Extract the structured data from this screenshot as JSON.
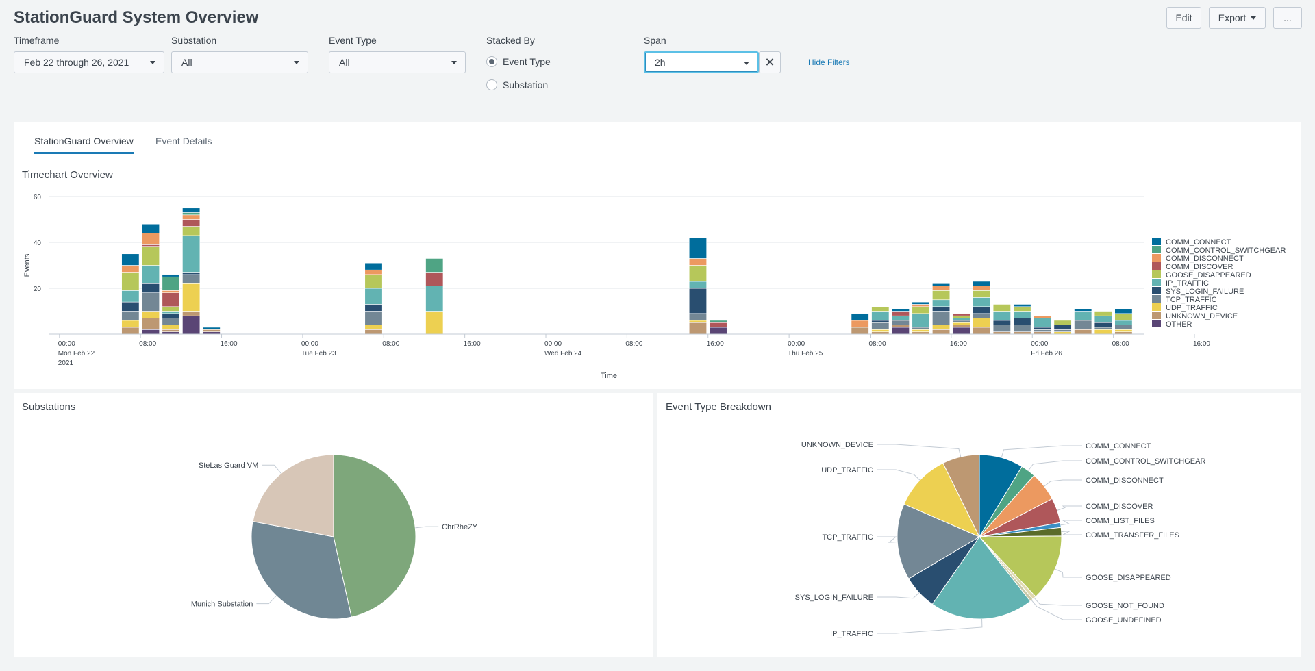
{
  "header": {
    "title": "StationGuard System Overview",
    "edit_label": "Edit",
    "export_label": "Export",
    "more_label": "..."
  },
  "filters": {
    "timeframe": {
      "label": "Timeframe",
      "value": "Feb 22 through 26, 2021"
    },
    "substation": {
      "label": "Substation",
      "value": "All"
    },
    "event_type": {
      "label": "Event Type",
      "value": "All"
    },
    "stacked_by": {
      "label": "Stacked By",
      "options": [
        "Event Type",
        "Substation"
      ],
      "selected": "Event Type"
    },
    "span": {
      "label": "Span",
      "value": "2h"
    },
    "hide_filters_label": "Hide Filters"
  },
  "tabs": [
    {
      "label": "StationGuard Overview",
      "active": true
    },
    {
      "label": "Event Details",
      "active": false
    }
  ],
  "panels": {
    "timechart_title": "Timechart Overview",
    "substations_title": "Substations",
    "breakdown_title": "Event Type Breakdown"
  },
  "colors": {
    "COMM_CONNECT": "#006d9c",
    "COMM_CONTROL_SWITCHGEAR": "#4fa484",
    "COMM_DISCONNECT": "#ec9960",
    "COMM_DISCOVER": "#af575a",
    "COMM_LIST_FILES": "#3a8fc4",
    "COMM_TRANSFER_FILES": "#5a6b2a",
    "GOOSE_DISAPPEARED": "#b6c75a",
    "GOOSE_NOT_FOUND": "#e0d9b0",
    "GOOSE_UNDEFINED": "#c9c9a8",
    "IP_TRAFFIC": "#62b3b2",
    "SYS_LOGIN_FAILURE": "#294e70",
    "TCP_TRAFFIC": "#738795",
    "UDP_TRAFFIC": "#edd051",
    "UNKNOWN_DEVICE": "#bd9872",
    "OTHER": "#5a4575",
    "ChrRheZY": "#7ea77b",
    "Munich Substation": "#708794",
    "SteLas Guard VM": "#d7c6b7"
  },
  "chart_data": [
    {
      "type": "bar",
      "stacked": true,
      "title": "Timechart Overview",
      "xlabel": "Time",
      "ylabel": "Events",
      "ylim": [
        0,
        60
      ],
      "yticks": [
        20,
        40,
        60
      ],
      "x_unit": "hours since Mon Feb 22 00:00",
      "xlim": [
        -1,
        107
      ],
      "bar_span_hours": 2,
      "xticks": [
        {
          "hour": 0,
          "lines": [
            "00:00",
            "Mon Feb 22",
            "2021"
          ]
        },
        {
          "hour": 8,
          "lines": [
            "08:00"
          ]
        },
        {
          "hour": 16,
          "lines": [
            "16:00"
          ]
        },
        {
          "hour": 24,
          "lines": [
            "00:00",
            "Tue Feb 23"
          ]
        },
        {
          "hour": 32,
          "lines": [
            "08:00"
          ]
        },
        {
          "hour": 40,
          "lines": [
            "16:00"
          ]
        },
        {
          "hour": 48,
          "lines": [
            "00:00",
            "Wed Feb 24"
          ]
        },
        {
          "hour": 56,
          "lines": [
            "08:00"
          ]
        },
        {
          "hour": 64,
          "lines": [
            "16:00"
          ]
        },
        {
          "hour": 72,
          "lines": [
            "00:00",
            "Thu Feb 25"
          ]
        },
        {
          "hour": 80,
          "lines": [
            "08:00"
          ]
        },
        {
          "hour": 88,
          "lines": [
            "16:00"
          ]
        },
        {
          "hour": 96,
          "lines": [
            "00:00",
            "Fri Feb 26"
          ]
        },
        {
          "hour": 104,
          "lines": [
            "08:00"
          ]
        },
        {
          "hour": 112,
          "lines": [
            "16:00"
          ]
        }
      ],
      "legend": [
        "COMM_CONNECT",
        "COMM_CONTROL_SWITCHGEAR",
        "COMM_DISCONNECT",
        "COMM_DISCOVER",
        "GOOSE_DISAPPEARED",
        "IP_TRAFFIC",
        "SYS_LOGIN_FAILURE",
        "TCP_TRAFFIC",
        "UDP_TRAFFIC",
        "UNKNOWN_DEVICE",
        "OTHER"
      ],
      "stack_order": [
        "OTHER",
        "UNKNOWN_DEVICE",
        "UDP_TRAFFIC",
        "TCP_TRAFFIC",
        "SYS_LOGIN_FAILURE",
        "IP_TRAFFIC",
        "GOOSE_DISAPPEARED",
        "COMM_DISCOVER",
        "COMM_DISCONNECT",
        "COMM_CONTROL_SWITCHGEAR",
        "COMM_CONNECT"
      ],
      "bars": [
        {
          "hour": 6,
          "values": {
            "OTHER": 0,
            "UNKNOWN_DEVICE": 3,
            "UDP_TRAFFIC": 3,
            "TCP_TRAFFIC": 4,
            "SYS_LOGIN_FAILURE": 4,
            "IP_TRAFFIC": 5,
            "GOOSE_DISAPPEARED": 8,
            "COMM_DISCONNECT": 3,
            "COMM_CONNECT": 5
          }
        },
        {
          "hour": 8,
          "values": {
            "OTHER": 2,
            "UNKNOWN_DEVICE": 5,
            "UDP_TRAFFIC": 3,
            "TCP_TRAFFIC": 8,
            "SYS_LOGIN_FAILURE": 4,
            "IP_TRAFFIC": 8,
            "GOOSE_DISAPPEARED": 8,
            "COMM_DISCOVER": 1,
            "COMM_DISCONNECT": 5,
            "COMM_CONNECT": 4
          }
        },
        {
          "hour": 10,
          "values": {
            "OTHER": 1,
            "UNKNOWN_DEVICE": 1,
            "UDP_TRAFFIC": 2,
            "TCP_TRAFFIC": 3,
            "SYS_LOGIN_FAILURE": 2,
            "IP_TRAFFIC": 1,
            "GOOSE_DISAPPEARED": 2,
            "COMM_DISCOVER": 6,
            "COMM_DISCONNECT": 1,
            "COMM_CONTROL_SWITCHGEAR": 6,
            "COMM_CONNECT": 1
          }
        },
        {
          "hour": 12,
          "values": {
            "OTHER": 8,
            "UNKNOWN_DEVICE": 2,
            "UDP_TRAFFIC": 12,
            "TCP_TRAFFIC": 4,
            "SYS_LOGIN_FAILURE": 1,
            "IP_TRAFFIC": 16,
            "GOOSE_DISAPPEARED": 4,
            "COMM_DISCOVER": 3,
            "COMM_DISCONNECT": 2,
            "COMM_CONTROL_SWITCHGEAR": 1,
            "COMM_CONNECT": 2
          }
        },
        {
          "hour": 14,
          "values": {
            "OTHER": 1,
            "UNKNOWN_DEVICE": 1,
            "COMM_CONNECT": 1
          }
        },
        {
          "hour": 30,
          "values": {
            "UNKNOWN_DEVICE": 2,
            "UDP_TRAFFIC": 2,
            "TCP_TRAFFIC": 6,
            "SYS_LOGIN_FAILURE": 3,
            "IP_TRAFFIC": 7,
            "GOOSE_DISAPPEARED": 6,
            "COMM_DISCONNECT": 2,
            "COMM_CONNECT": 3
          }
        },
        {
          "hour": 36,
          "values": {
            "UDP_TRAFFIC": 10,
            "IP_TRAFFIC": 11,
            "COMM_DISCOVER": 6,
            "COMM_CONTROL_SWITCHGEAR": 6
          }
        },
        {
          "hour": 62,
          "values": {
            "UNKNOWN_DEVICE": 5,
            "UDP_TRAFFIC": 1,
            "TCP_TRAFFIC": 3,
            "SYS_LOGIN_FAILURE": 11,
            "IP_TRAFFIC": 3,
            "GOOSE_DISAPPEARED": 7,
            "COMM_DISCONNECT": 3,
            "COMM_CONNECT": 9
          }
        },
        {
          "hour": 64,
          "values": {
            "OTHER": 3,
            "COMM_DISCOVER": 2,
            "COMM_CONTROL_SWITCHGEAR": 1
          }
        },
        {
          "hour": 78,
          "values": {
            "UNKNOWN_DEVICE": 3,
            "COMM_DISCONNECT": 3,
            "COMM_CONNECT": 3
          }
        },
        {
          "hour": 80,
          "values": {
            "UNKNOWN_DEVICE": 1,
            "UDP_TRAFFIC": 1,
            "TCP_TRAFFIC": 3,
            "SYS_LOGIN_FAILURE": 1,
            "IP_TRAFFIC": 4,
            "GOOSE_DISAPPEARED": 2
          }
        },
        {
          "hour": 82,
          "values": {
            "OTHER": 3,
            "UNKNOWN_DEVICE": 1,
            "TCP_TRAFFIC": 2,
            "IP_TRAFFIC": 2,
            "COMM_DISCOVER": 2,
            "COMM_CONNECT": 1
          }
        },
        {
          "hour": 84,
          "values": {
            "UNKNOWN_DEVICE": 1,
            "UDP_TRAFFIC": 1,
            "TCP_TRAFFIC": 1,
            "IP_TRAFFIC": 6,
            "GOOSE_DISAPPEARED": 3,
            "COMM_DISCONNECT": 1,
            "COMM_CONNECT": 1
          }
        },
        {
          "hour": 86,
          "values": {
            "UNKNOWN_DEVICE": 2,
            "UDP_TRAFFIC": 2,
            "TCP_TRAFFIC": 6,
            "SYS_LOGIN_FAILURE": 2,
            "IP_TRAFFIC": 3,
            "GOOSE_DISAPPEARED": 4,
            "COMM_DISCONNECT": 2,
            "COMM_CONNECT": 1
          }
        },
        {
          "hour": 88,
          "values": {
            "OTHER": 3,
            "UNKNOWN_DEVICE": 1,
            "UDP_TRAFFIC": 1,
            "TCP_TRAFFIC": 1,
            "IP_TRAFFIC": 1,
            "GOOSE_DISAPPEARED": 1,
            "COMM_DISCOVER": 1
          }
        },
        {
          "hour": 90,
          "values": {
            "UNKNOWN_DEVICE": 3,
            "UDP_TRAFFIC": 4,
            "TCP_TRAFFIC": 2,
            "SYS_LOGIN_FAILURE": 3,
            "IP_TRAFFIC": 4,
            "GOOSE_DISAPPEARED": 3,
            "COMM_DISCONNECT": 2,
            "COMM_CONNECT": 2
          }
        },
        {
          "hour": 92,
          "values": {
            "UNKNOWN_DEVICE": 1,
            "TCP_TRAFFIC": 3,
            "SYS_LOGIN_FAILURE": 2,
            "IP_TRAFFIC": 4,
            "GOOSE_DISAPPEARED": 3
          }
        },
        {
          "hour": 94,
          "values": {
            "UNKNOWN_DEVICE": 1,
            "TCP_TRAFFIC": 3,
            "SYS_LOGIN_FAILURE": 3,
            "IP_TRAFFIC": 3,
            "GOOSE_DISAPPEARED": 2,
            "COMM_CONNECT": 1
          }
        },
        {
          "hour": 96,
          "values": {
            "UNKNOWN_DEVICE": 1,
            "TCP_TRAFFIC": 1,
            "SYS_LOGIN_FAILURE": 1,
            "IP_TRAFFIC": 4,
            "COMM_DISCONNECT": 1
          }
        },
        {
          "hour": 98,
          "values": {
            "UDP_TRAFFIC": 1,
            "TCP_TRAFFIC": 1,
            "SYS_LOGIN_FAILURE": 2,
            "GOOSE_DISAPPEARED": 2
          }
        },
        {
          "hour": 100,
          "values": {
            "UNKNOWN_DEVICE": 2,
            "TCP_TRAFFIC": 4,
            "IP_TRAFFIC": 4,
            "COMM_CONNECT": 1
          }
        },
        {
          "hour": 102,
          "values": {
            "UDP_TRAFFIC": 2,
            "TCP_TRAFFIC": 1,
            "SYS_LOGIN_FAILURE": 2,
            "IP_TRAFFIC": 3,
            "GOOSE_DISAPPEARED": 2
          }
        },
        {
          "hour": 104,
          "values": {
            "UNKNOWN_DEVICE": 1,
            "UDP_TRAFFIC": 1,
            "TCP_TRAFFIC": 2,
            "IP_TRAFFIC": 2,
            "GOOSE_DISAPPEARED": 3,
            "COMM_CONNECT": 2
          }
        }
      ]
    },
    {
      "type": "pie",
      "title": "Substations",
      "slices": [
        {
          "label": "ChrRheZY",
          "value": 46.5
        },
        {
          "label": "Munich Substation",
          "value": 31.5
        },
        {
          "label": "SteLas Guard VM",
          "value": 22
        }
      ]
    },
    {
      "type": "pie",
      "title": "Event Type Breakdown",
      "slices": [
        {
          "label": "COMM_CONNECT",
          "value": 8.3,
          "side": "right"
        },
        {
          "label": "COMM_CONTROL_SWITCHGEAR",
          "value": 2.8,
          "side": "right"
        },
        {
          "label": "COMM_DISCONNECT",
          "value": 5.5,
          "side": "right"
        },
        {
          "label": "COMM_DISCOVER",
          "value": 4.7,
          "side": "right"
        },
        {
          "label": "COMM_LIST_FILES",
          "value": 0.9,
          "side": "right"
        },
        {
          "label": "COMM_TRANSFER_FILES",
          "value": 1.6,
          "side": "right"
        },
        {
          "label": "GOOSE_DISAPPEARED",
          "value": 12.6,
          "side": "right"
        },
        {
          "label": "GOOSE_NOT_FOUND",
          "value": 0.7,
          "side": "right"
        },
        {
          "label": "GOOSE_UNDEFINED",
          "value": 0.6,
          "side": "right"
        },
        {
          "label": "IP_TRAFFIC",
          "value": 19.5,
          "side": "left"
        },
        {
          "label": "SYS_LOGIN_FAILURE",
          "value": 6.5,
          "side": "left"
        },
        {
          "label": "TCP_TRAFFIC",
          "value": 14.4,
          "side": "left"
        },
        {
          "label": "UDP_TRAFFIC",
          "value": 10.7,
          "side": "left"
        },
        {
          "label": "UNKNOWN_DEVICE",
          "value": 7.0,
          "side": "left"
        }
      ]
    }
  ]
}
